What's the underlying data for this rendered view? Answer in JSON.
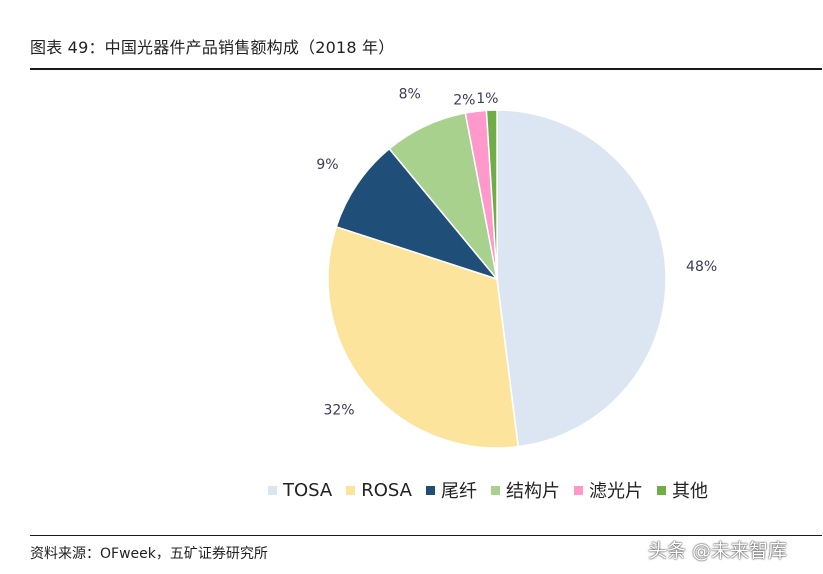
{
  "figure": {
    "title": "图表 49：中国光器件产品销售额构成（2018 年）",
    "source": "资料来源：OFweek，五矿证券研究所",
    "watermark": "头条 @未来智库"
  },
  "chart_data": {
    "type": "pie",
    "title": "中国光器件产品销售额构成（2018 年）",
    "legend_position": "bottom",
    "slices": [
      {
        "label": "TOSA",
        "value": 48,
        "display": "48%",
        "color": "#dce6f2"
      },
      {
        "label": "ROSA",
        "value": 32,
        "display": "32%",
        "color": "#fde49c"
      },
      {
        "label": "尾纤",
        "value": 9,
        "display": "9%",
        "color": "#1f4e79"
      },
      {
        "label": "结构片",
        "value": 8,
        "display": "8%",
        "color": "#a9d18e"
      },
      {
        "label": "滤光片",
        "value": 2,
        "display": "2%",
        "color": "#ff99cc"
      },
      {
        "label": "其他",
        "value": 1,
        "display": "1%",
        "color": "#70ad47"
      }
    ]
  }
}
